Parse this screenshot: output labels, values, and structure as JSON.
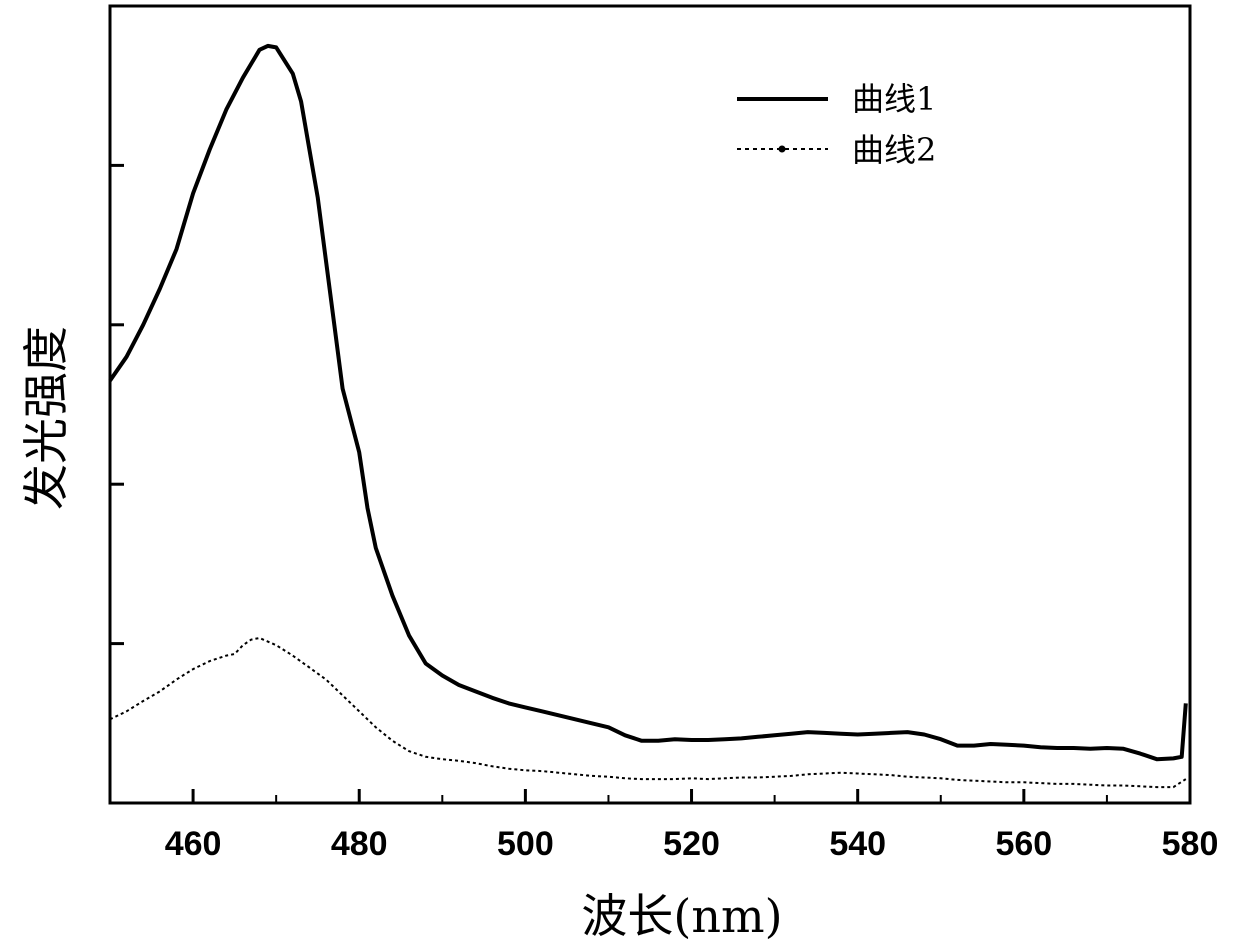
{
  "chart_data": {
    "type": "line",
    "title": "",
    "xlabel": "波长(nm)",
    "ylabel": "发光强度",
    "xlim": [
      450,
      580
    ],
    "ylim": [
      0,
      100
    ],
    "xticks": [
      460,
      480,
      500,
      520,
      540,
      560,
      580
    ],
    "x_minor_ticks": [
      470,
      490,
      510,
      530,
      550,
      570
    ],
    "y_tick_values": [
      20,
      40,
      60,
      80,
      100
    ],
    "y_tick_labels_shown": false,
    "grid": false,
    "legend_position": "top-right",
    "series": [
      {
        "name": "曲线1",
        "style": "solid",
        "color": "#000000",
        "points": [
          [
            450,
            53.0
          ],
          [
            452,
            56.0
          ],
          [
            454,
            60.0
          ],
          [
            456,
            64.5
          ],
          [
            458,
            69.5
          ],
          [
            460,
            76.5
          ],
          [
            462,
            82.0
          ],
          [
            464,
            87.0
          ],
          [
            466,
            91.0
          ],
          [
            468,
            94.5
          ],
          [
            469,
            95.0
          ],
          [
            470,
            94.8
          ],
          [
            472,
            91.5
          ],
          [
            473,
            88.0
          ],
          [
            474,
            82.0
          ],
          [
            475,
            76.0
          ],
          [
            476,
            68.0
          ],
          [
            477,
            60.0
          ],
          [
            478,
            52.0
          ],
          [
            480,
            44.0
          ],
          [
            481,
            37.0
          ],
          [
            482,
            32.0
          ],
          [
            484,
            26.0
          ],
          [
            486,
            21.0
          ],
          [
            488,
            17.5
          ],
          [
            490,
            16.0
          ],
          [
            492,
            14.8
          ],
          [
            494,
            14.0
          ],
          [
            496,
            13.2
          ],
          [
            498,
            12.5
          ],
          [
            500,
            12.0
          ],
          [
            502,
            11.5
          ],
          [
            504,
            11.0
          ],
          [
            506,
            10.5
          ],
          [
            508,
            10.0
          ],
          [
            510,
            9.5
          ],
          [
            512,
            8.5
          ],
          [
            514,
            7.8
          ],
          [
            516,
            7.8
          ],
          [
            518,
            8.0
          ],
          [
            520,
            7.9
          ],
          [
            522,
            7.9
          ],
          [
            524,
            8.0
          ],
          [
            526,
            8.1
          ],
          [
            528,
            8.3
          ],
          [
            530,
            8.5
          ],
          [
            532,
            8.7
          ],
          [
            534,
            8.9
          ],
          [
            536,
            8.8
          ],
          [
            538,
            8.7
          ],
          [
            540,
            8.6
          ],
          [
            542,
            8.7
          ],
          [
            544,
            8.8
          ],
          [
            546,
            8.9
          ],
          [
            548,
            8.6
          ],
          [
            550,
            8.0
          ],
          [
            552,
            7.2
          ],
          [
            554,
            7.2
          ],
          [
            556,
            7.4
          ],
          [
            558,
            7.3
          ],
          [
            560,
            7.2
          ],
          [
            562,
            7.0
          ],
          [
            564,
            6.9
          ],
          [
            566,
            6.9
          ],
          [
            568,
            6.8
          ],
          [
            570,
            6.9
          ],
          [
            572,
            6.8
          ],
          [
            574,
            6.2
          ],
          [
            576,
            5.5
          ],
          [
            578,
            5.6
          ],
          [
            579,
            5.8
          ],
          [
            579.5,
            12.5
          ]
        ]
      },
      {
        "name": "曲线2",
        "style": "dotted",
        "color": "#000000",
        "points": [
          [
            450,
            10.5
          ],
          [
            452,
            11.5
          ],
          [
            454,
            12.8
          ],
          [
            456,
            14.0
          ],
          [
            458,
            15.5
          ],
          [
            460,
            16.8
          ],
          [
            462,
            17.8
          ],
          [
            464,
            18.5
          ],
          [
            465,
            18.7
          ],
          [
            466,
            19.8
          ],
          [
            467,
            20.5
          ],
          [
            468,
            20.7
          ],
          [
            470,
            19.8
          ],
          [
            472,
            18.5
          ],
          [
            474,
            17.0
          ],
          [
            476,
            15.5
          ],
          [
            478,
            13.5
          ],
          [
            480,
            11.5
          ],
          [
            482,
            9.5
          ],
          [
            484,
            7.8
          ],
          [
            486,
            6.5
          ],
          [
            488,
            5.8
          ],
          [
            490,
            5.5
          ],
          [
            492,
            5.3
          ],
          [
            494,
            5.0
          ],
          [
            496,
            4.6
          ],
          [
            498,
            4.3
          ],
          [
            500,
            4.1
          ],
          [
            502,
            4.0
          ],
          [
            504,
            3.8
          ],
          [
            506,
            3.6
          ],
          [
            508,
            3.4
          ],
          [
            510,
            3.3
          ],
          [
            512,
            3.1
          ],
          [
            514,
            3.0
          ],
          [
            516,
            3.0
          ],
          [
            518,
            3.0
          ],
          [
            520,
            3.1
          ],
          [
            522,
            3.0
          ],
          [
            524,
            3.1
          ],
          [
            526,
            3.2
          ],
          [
            528,
            3.2
          ],
          [
            530,
            3.3
          ],
          [
            532,
            3.4
          ],
          [
            534,
            3.6
          ],
          [
            536,
            3.7
          ],
          [
            538,
            3.8
          ],
          [
            540,
            3.7
          ],
          [
            542,
            3.6
          ],
          [
            544,
            3.5
          ],
          [
            546,
            3.3
          ],
          [
            548,
            3.2
          ],
          [
            550,
            3.1
          ],
          [
            552,
            2.9
          ],
          [
            554,
            2.8
          ],
          [
            556,
            2.7
          ],
          [
            558,
            2.6
          ],
          [
            560,
            2.6
          ],
          [
            562,
            2.5
          ],
          [
            564,
            2.4
          ],
          [
            566,
            2.4
          ],
          [
            568,
            2.3
          ],
          [
            570,
            2.2
          ],
          [
            572,
            2.2
          ],
          [
            574,
            2.1
          ],
          [
            576,
            2.0
          ],
          [
            578,
            2.0
          ],
          [
            579.5,
            3.0
          ]
        ]
      }
    ]
  }
}
